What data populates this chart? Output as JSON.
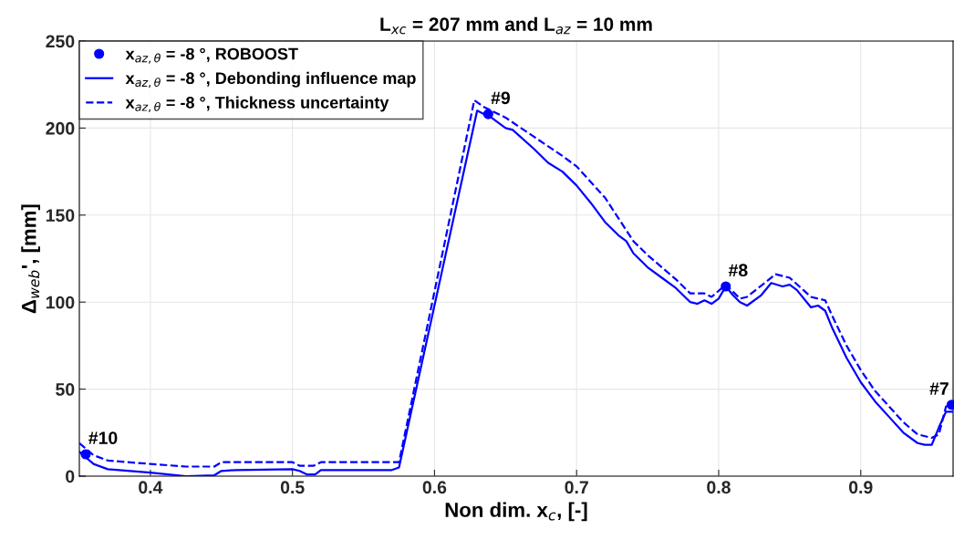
{
  "chart_data": {
    "type": "line",
    "title": "L$_{xc}$ = 207 mm and L$_{az}$ = 10 mm",
    "xlabel": "Non dim. x$_{c}$, [-]",
    "ylabel": "Δ$_{web}$', [mm]",
    "xlim": [
      0.35,
      0.965
    ],
    "xticks": [
      0.4,
      0.5,
      0.6,
      0.7,
      0.8,
      0.9
    ],
    "ylim": [
      0,
      250
    ],
    "yticks": [
      0,
      50,
      100,
      150,
      200,
      250
    ],
    "grid": true,
    "legend": "top left",
    "series": [
      {
        "name": "x$_{az,θ}$ = -8 °, ROBOOST",
        "type": "scatter",
        "marker": "circle",
        "color": "#0000ff",
        "x": [
          0.3545,
          0.6378,
          0.805,
          0.964
        ],
        "values": [
          12.6,
          208,
          109,
          41
        ]
      },
      {
        "name": "x$_{az,θ}$ = -8 °, Debonding influence map",
        "line_style": "solid",
        "color": "#0000ff",
        "x": [
          0.35,
          0.36,
          0.37,
          0.4,
          0.425,
          0.445,
          0.45,
          0.46,
          0.5,
          0.505,
          0.51,
          0.516,
          0.52,
          0.57,
          0.575,
          0.63,
          0.635,
          0.64,
          0.65,
          0.655,
          0.67,
          0.68,
          0.69,
          0.7,
          0.71,
          0.72,
          0.73,
          0.735,
          0.74,
          0.75,
          0.76,
          0.77,
          0.78,
          0.785,
          0.79,
          0.795,
          0.8,
          0.805,
          0.81,
          0.815,
          0.82,
          0.83,
          0.837,
          0.845,
          0.85,
          0.855,
          0.865,
          0.87,
          0.875,
          0.88,
          0.89,
          0.9,
          0.91,
          0.92,
          0.93,
          0.94,
          0.945,
          0.95,
          0.955,
          0.96,
          0.965
        ],
        "values": [
          14,
          7,
          4,
          2,
          0,
          0.5,
          3,
          3.5,
          4,
          3,
          1,
          1,
          3.5,
          3.5,
          5,
          210,
          208,
          206,
          200,
          199,
          188,
          180,
          175,
          167,
          157,
          146,
          138,
          135,
          128,
          120,
          114,
          108,
          100,
          99,
          101,
          99,
          102,
          109,
          104,
          100,
          98,
          104,
          111,
          109,
          110,
          107,
          97,
          98,
          95,
          85,
          68,
          54,
          43,
          34,
          25,
          19,
          18,
          18,
          28,
          37,
          37
        ]
      },
      {
        "name": "x$_{az,θ}$ = -8 °, Thickness uncertainty",
        "line_style": "dashed",
        "color": "#0000ff",
        "x": [
          0.35,
          0.36,
          0.37,
          0.4,
          0.425,
          0.445,
          0.45,
          0.5,
          0.505,
          0.515,
          0.52,
          0.575,
          0.628,
          0.635,
          0.65,
          0.67,
          0.69,
          0.7,
          0.72,
          0.74,
          0.75,
          0.77,
          0.78,
          0.79,
          0.795,
          0.805,
          0.815,
          0.82,
          0.84,
          0.85,
          0.865,
          0.875,
          0.88,
          0.89,
          0.9,
          0.91,
          0.92,
          0.93,
          0.94,
          0.95,
          0.955,
          0.96,
          0.965
        ],
        "values": [
          19,
          12,
          9,
          7,
          5.5,
          5.5,
          8,
          8,
          6,
          6,
          8,
          8,
          216,
          212,
          206,
          195,
          184,
          178,
          160,
          135,
          127,
          113,
          105,
          105,
          103,
          110,
          102,
          103,
          116,
          114,
          103,
          101,
          92,
          75,
          61,
          49,
          40,
          31,
          24,
          22,
          24,
          40,
          42
        ]
      }
    ],
    "annotations": [
      {
        "text": "#10",
        "x": 0.3545,
        "y": 12.6
      },
      {
        "text": "#9",
        "x": 0.6378,
        "y": 208
      },
      {
        "text": "#8",
        "x": 0.805,
        "y": 109
      },
      {
        "text": "#7",
        "x": 0.964,
        "y": 41
      }
    ]
  }
}
